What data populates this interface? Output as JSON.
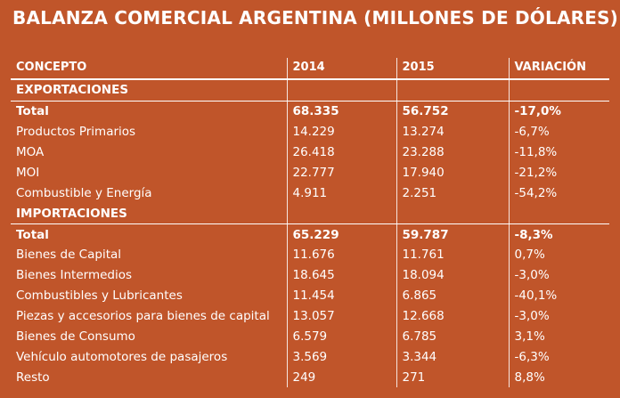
{
  "title": "BALANZA COMERCIAL ARGENTINA (MILLONES DE DÓLARES)",
  "table": {
    "headers": [
      "CONCEPTO",
      "2014",
      "2015",
      "VARIACIÓN"
    ],
    "exportaciones": {
      "label": "EXPORTACIONES",
      "total": [
        "Total",
        "68.335",
        "56.752",
        "-17,0%"
      ],
      "rows": [
        [
          "Productos Primarios",
          "14.229",
          "13.274",
          "-6,7%"
        ],
        [
          "MOA",
          "26.418",
          "23.288",
          "-11,8%"
        ],
        [
          "MOI",
          "22.777",
          "17.940",
          "-21,2%"
        ],
        [
          "Combustible y Energía",
          "4.911",
          "2.251",
          "-54,2%"
        ]
      ]
    },
    "importaciones": {
      "label": "IMPORTACIONES",
      "total": [
        "Total",
        "65.229",
        "59.787",
        "-8,3%"
      ],
      "rows": [
        [
          "Bienes de Capital",
          "11.676",
          "11.761",
          "0,7%"
        ],
        [
          "Bienes Intermedios",
          "18.645",
          "18.094",
          "-3,0%"
        ],
        [
          "Combustibles y Lubricantes",
          "11.454",
          "6.865",
          "-40,1%"
        ],
        [
          "Piezas y accesorios para bienes de capital",
          "13.057",
          "12.668",
          "-3,0%"
        ],
        [
          "Bienes de Consumo",
          "6.579",
          "6.785",
          "3,1%"
        ],
        [
          "Vehículo automotores de pasajeros",
          "3.569",
          "3.344",
          "-6,3%"
        ],
        [
          "Resto",
          "249",
          "271",
          "8,8%"
        ]
      ]
    }
  }
}
